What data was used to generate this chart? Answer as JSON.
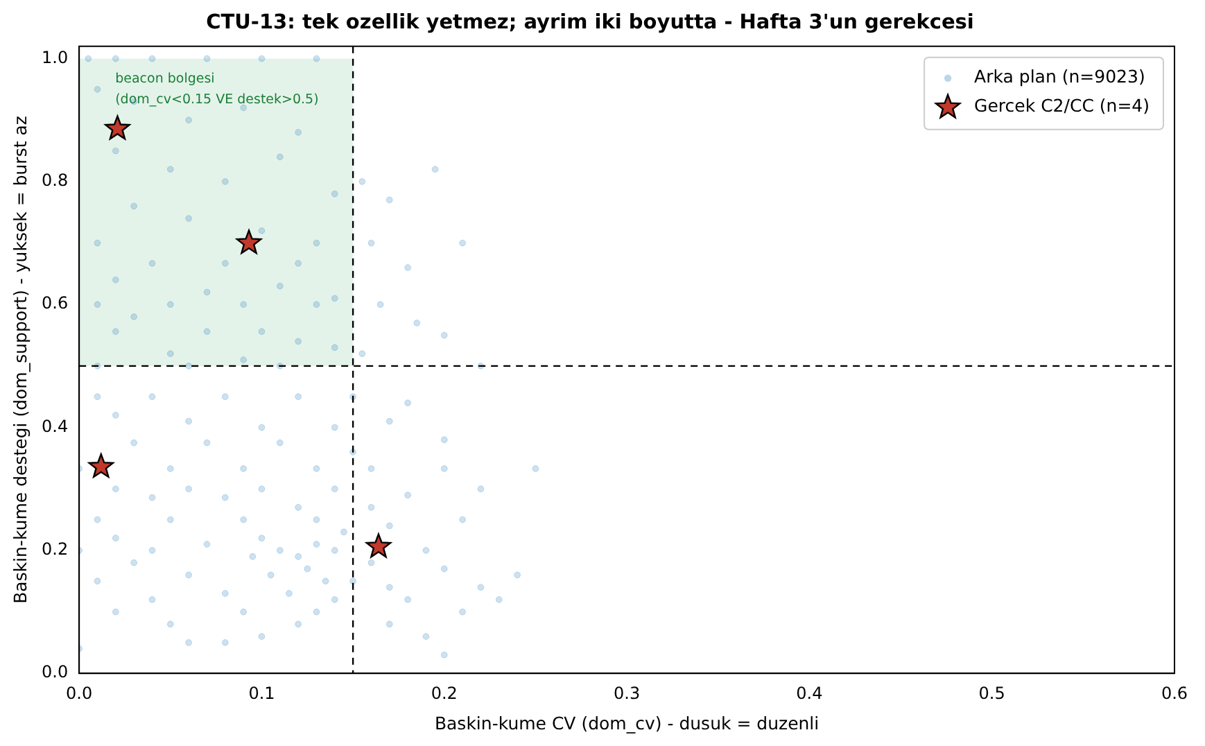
{
  "chart_data": {
    "type": "scatter",
    "title": "CTU-13: tek ozellik yetmez; ayrim iki boyutta - Hafta 3'un gerekcesi",
    "xlabel": "Baskin-kume CV (dom_cv) - dusuk = duzenli",
    "ylabel": "Baskin-kume destegi (dom_support) - yuksek = burst az",
    "xlim": [
      0,
      0.6
    ],
    "ylim": [
      0,
      1.02
    ],
    "xticks": [
      {
        "value": 0,
        "label": "0.0"
      },
      {
        "value": 0.1,
        "label": "0.1"
      },
      {
        "value": 0.2,
        "label": "0.2"
      },
      {
        "value": 0.3,
        "label": "0.3"
      },
      {
        "value": 0.4,
        "label": "0.4"
      },
      {
        "value": 0.5,
        "label": "0.5"
      },
      {
        "value": 0.6,
        "label": "0.6"
      }
    ],
    "yticks": [
      {
        "value": 0,
        "label": "0.0"
      },
      {
        "value": 0.2,
        "label": "0.2"
      },
      {
        "value": 0.4,
        "label": "0.4"
      },
      {
        "value": 0.6,
        "label": "0.6"
      },
      {
        "value": 0.8,
        "label": "0.8"
      },
      {
        "value": 1,
        "label": "1.0"
      }
    ],
    "grid": false,
    "legend": "top right",
    "ref_lines": [
      {
        "axis": "x",
        "value": 0.15,
        "color": "#000000",
        "line_style": "dashed"
      },
      {
        "axis": "y",
        "value": 0.5,
        "color": "#000000",
        "line_style": "dashed"
      }
    ],
    "bands": [
      {
        "axis": "x",
        "from": 0,
        "to": 0.15,
        "label": "beacon bolgesi\n(dom_cv<0.15 VE destek>0.5)",
        "color": "#2ca05a"
      }
    ],
    "series": [
      {
        "name": "Arka plan (n=9023)",
        "color": "#1f77b4",
        "marker": "circle",
        "x": [
          0.005,
          0.02,
          0.04,
          0.07,
          0.1,
          0.13,
          0.01,
          0.03,
          0.06,
          0.09,
          0.12,
          0.02,
          0.05,
          0.08,
          0.11,
          0.14,
          0.03,
          0.06,
          0.1,
          0.13,
          0.01,
          0.04,
          0.08,
          0.12,
          0.02,
          0.07,
          0.11,
          0.14,
          0.01,
          0.05,
          0.09,
          0.13,
          0.03,
          0.07,
          0.1,
          0.02,
          0.12,
          0.05,
          0.09,
          0.14,
          0.01,
          0.06,
          0.11,
          0.155,
          0.17,
          0.195,
          0.16,
          0.21,
          0.18,
          0.165,
          0.185,
          0.2,
          0.155,
          0.22,
          0.01,
          0.04,
          0.08,
          0.12,
          0.15,
          0.18,
          0.02,
          0.06,
          0.1,
          0.14,
          0.17,
          0.2,
          0.03,
          0.07,
          0.11,
          0.15,
          0,
          0.05,
          0.09,
          0.13,
          0.16,
          0.2,
          0.25,
          0.02,
          0.06,
          0.1,
          0.14,
          0.18,
          0.22,
          0.04,
          0.08,
          0.12,
          0.16,
          0.01,
          0.05,
          0.09,
          0.13,
          0.17,
          0.21,
          0.1,
          0.11,
          0.12,
          0.13,
          0.14,
          0.125,
          0.135,
          0.115,
          0.14,
          0.105,
          0.095,
          0.145,
          0.13,
          0.12,
          0.15,
          0.16,
          0.17,
          0.18,
          0.19,
          0.2,
          0.21,
          0.22,
          0.23,
          0.24,
          0.19,
          0.2,
          0.17,
          0,
          0.01,
          0.02,
          0.03,
          0.04,
          0.05,
          0.06,
          0.07,
          0.08,
          0.09,
          0.1,
          0.08,
          0.06,
          0,
          0.02,
          0.04
        ],
        "values": [
          1,
          1,
          1,
          1,
          1,
          1,
          0.95,
          0.93,
          0.9,
          0.92,
          0.88,
          0.85,
          0.82,
          0.8,
          0.84,
          0.78,
          0.76,
          0.74,
          0.72,
          0.7,
          0.7,
          0.667,
          0.667,
          0.667,
          0.64,
          0.62,
          0.63,
          0.61,
          0.6,
          0.6,
          0.6,
          0.6,
          0.58,
          0.556,
          0.556,
          0.556,
          0.54,
          0.52,
          0.51,
          0.53,
          0.5,
          0.5,
          0.5,
          0.8,
          0.77,
          0.82,
          0.7,
          0.7,
          0.66,
          0.6,
          0.57,
          0.55,
          0.52,
          0.5,
          0.45,
          0.45,
          0.45,
          0.45,
          0.45,
          0.44,
          0.42,
          0.41,
          0.4,
          0.4,
          0.41,
          0.38,
          0.375,
          0.375,
          0.375,
          0.36,
          0.333,
          0.333,
          0.333,
          0.333,
          0.333,
          0.333,
          0.333,
          0.3,
          0.3,
          0.3,
          0.3,
          0.29,
          0.3,
          0.286,
          0.286,
          0.27,
          0.27,
          0.25,
          0.25,
          0.25,
          0.25,
          0.24,
          0.25,
          0.22,
          0.2,
          0.19,
          0.21,
          0.2,
          0.17,
          0.15,
          0.13,
          0.12,
          0.16,
          0.19,
          0.23,
          0.1,
          0.08,
          0.15,
          0.18,
          0.14,
          0.12,
          0.2,
          0.17,
          0.1,
          0.14,
          0.12,
          0.16,
          0.06,
          0.03,
          0.08,
          0.2,
          0.15,
          0.1,
          0.18,
          0.12,
          0.08,
          0.16,
          0.21,
          0.13,
          0.1,
          0.06,
          0.05,
          0.05,
          0.04,
          0.22,
          0.2
        ]
      },
      {
        "name": "Gercek C2/CC (n=4)",
        "color": "#c0392b",
        "marker": "star",
        "x": [
          0.021,
          0.093,
          0.012,
          0.164
        ],
        "values": [
          0.886,
          0.7,
          0.336,
          0.206
        ]
      }
    ]
  }
}
